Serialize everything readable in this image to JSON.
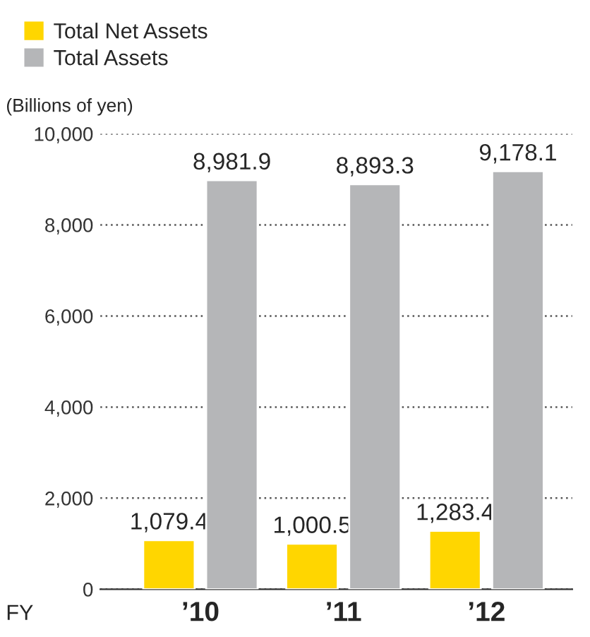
{
  "chart_data": {
    "type": "bar",
    "ylabel": "(Billions of yen)",
    "xlabel": "FY",
    "categories": [
      "’10",
      "’11",
      "’12"
    ],
    "series": [
      {
        "name": "Total Net Assets",
        "color": "#ffd600",
        "values": [
          1079.4,
          1000.5,
          1283.4
        ],
        "value_labels": [
          "1,079.4",
          "1,000.5",
          "1,283.4"
        ]
      },
      {
        "name": "Total Assets",
        "color": "#b5b6b8",
        "values": [
          8981.9,
          8893.3,
          9178.1
        ],
        "value_labels": [
          "8,981.9",
          "8,893.3",
          "9,178.1"
        ]
      }
    ],
    "ylim": [
      0,
      10000
    ],
    "yticks": [
      {
        "value": 0,
        "label": "0"
      },
      {
        "value": 2000,
        "label": "2,000"
      },
      {
        "value": 4000,
        "label": "4,000"
      },
      {
        "value": 6000,
        "label": "6,000"
      },
      {
        "value": 8000,
        "label": "8,000"
      },
      {
        "value": 10000,
        "label": "10,000"
      }
    ],
    "grid": "y",
    "legend": "top left"
  }
}
